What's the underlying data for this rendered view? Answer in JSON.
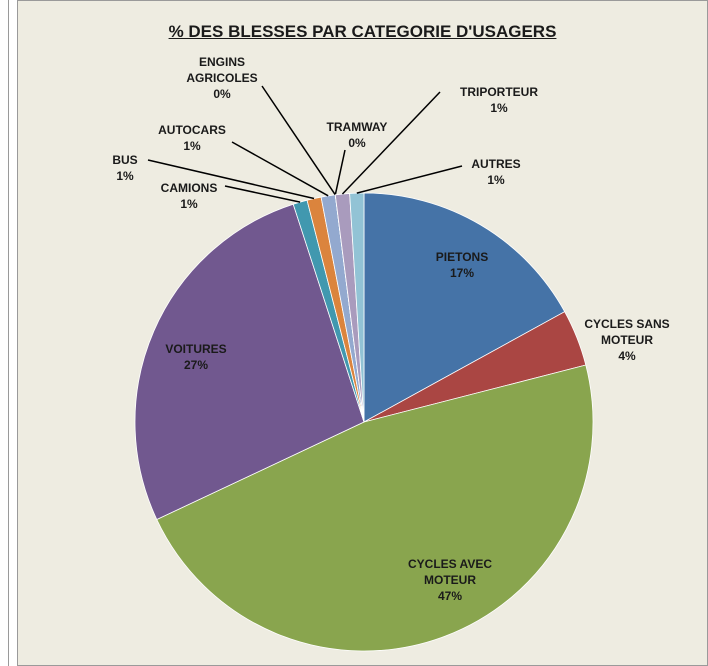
{
  "chart_data": {
    "type": "pie",
    "title": "% DES BLESSES PAR CATEGORIE D'USAGERS",
    "categories": [
      "PIETONS",
      "CYCLES SANS MOTEUR",
      "CYCLES AVEC MOTEUR",
      "VOITURES",
      "CAMIONS",
      "BUS",
      "AUTOCARS",
      "ENGINS AGRICOLES",
      "TRAMWAY",
      "TRIPORTEUR",
      "AUTRES"
    ],
    "values": [
      17,
      4,
      47,
      27,
      1,
      1,
      1,
      0,
      0,
      1,
      1
    ],
    "value_labels": [
      "17%",
      "4%",
      "47%",
      "27%",
      "1%",
      "1%",
      "1%",
      "0%",
      "0%",
      "1%",
      "1%"
    ],
    "colors": [
      "#4573a7",
      "#aa4643",
      "#89a54e",
      "#71588f",
      "#4198af",
      "#db843d",
      "#93a9cf",
      "#d19392",
      "#b9cd96",
      "#a99bbd",
      "#92c3d5"
    ]
  }
}
